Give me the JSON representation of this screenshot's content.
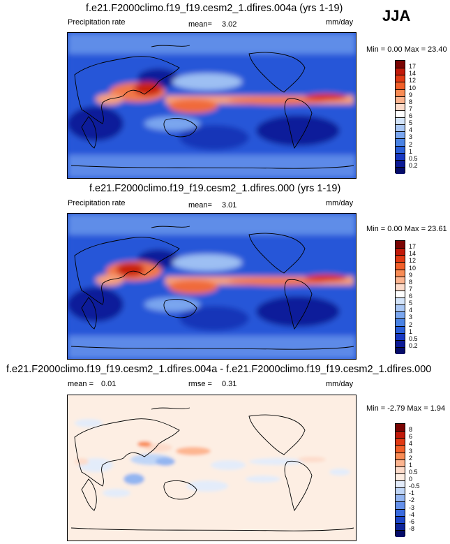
{
  "season": "JJA",
  "panels": [
    {
      "id": "top",
      "title": "f.e21.F2000climo.f19_f19.cesm2_1.dfires.004a (yrs 1-19)",
      "field_name": "Precipitation rate",
      "stat_label": "mean=",
      "stat_value": "3.02",
      "units": "mm/day",
      "minmax": "Min =   0.00 Max =  23.40",
      "colorbar": {
        "labels": [
          "17",
          "14",
          "12",
          "10",
          "9",
          "8",
          "7",
          "6",
          "5",
          "4",
          "3",
          "2",
          "1",
          "0.5",
          "0.2"
        ],
        "colors": [
          "#7a0403",
          "#c21a0a",
          "#e23a14",
          "#f2602a",
          "#f98c55",
          "#fdb590",
          "#fddccb",
          "#ffffff",
          "#d4e5fb",
          "#a9c7f5",
          "#7aa6ef",
          "#4a83e5",
          "#2a5fd9",
          "#1839c3",
          "#0c1a96",
          "#050c6a"
        ]
      }
    },
    {
      "id": "middle",
      "title": "f.e21.F2000climo.f19_f19.cesm2_1.dfires.000 (yrs 1-19)",
      "field_name": "Precipitation rate",
      "stat_label": "mean=",
      "stat_value": "3.01",
      "units": "mm/day",
      "minmax": "Min =   0.00 Max =  23.61",
      "colorbar": {
        "labels": [
          "17",
          "14",
          "12",
          "10",
          "9",
          "8",
          "7",
          "6",
          "5",
          "4",
          "3",
          "2",
          "1",
          "0.5",
          "0.2"
        ],
        "colors": [
          "#7a0403",
          "#c21a0a",
          "#e23a14",
          "#f2602a",
          "#f98c55",
          "#fdb590",
          "#fddccb",
          "#ffffff",
          "#d4e5fb",
          "#a9c7f5",
          "#7aa6ef",
          "#4a83e5",
          "#2a5fd9",
          "#1839c3",
          "#0c1a96",
          "#050c6a"
        ]
      }
    },
    {
      "id": "bottom",
      "title": "f.e21.F2000climo.f19_f19.cesm2_1.dfires.004a - f.e21.F2000climo.f19_f19.cesm2_1.dfires.000",
      "mean_label": "mean =",
      "mean_value": "0.01",
      "rmse_label": "rmse =",
      "rmse_value": "0.31",
      "units": "mm/day",
      "minmax": "Min =  -2.79 Max =   1.94",
      "colorbar": {
        "labels": [
          "8",
          "6",
          "4",
          "3",
          "2",
          "1",
          "0.5",
          "0",
          "-0.5",
          "-1",
          "-2",
          "-3",
          "-4",
          "-6",
          "-8"
        ],
        "colors": [
          "#7a0403",
          "#c21a0a",
          "#e23a14",
          "#f2602a",
          "#f98c55",
          "#fdb590",
          "#fddccb",
          "#fdeee3",
          "#e3ecfa",
          "#c0d6f7",
          "#93b5f1",
          "#6490ea",
          "#3a6bdf",
          "#1c45c7",
          "#0d2499",
          "#050c6a"
        ]
      }
    }
  ]
}
